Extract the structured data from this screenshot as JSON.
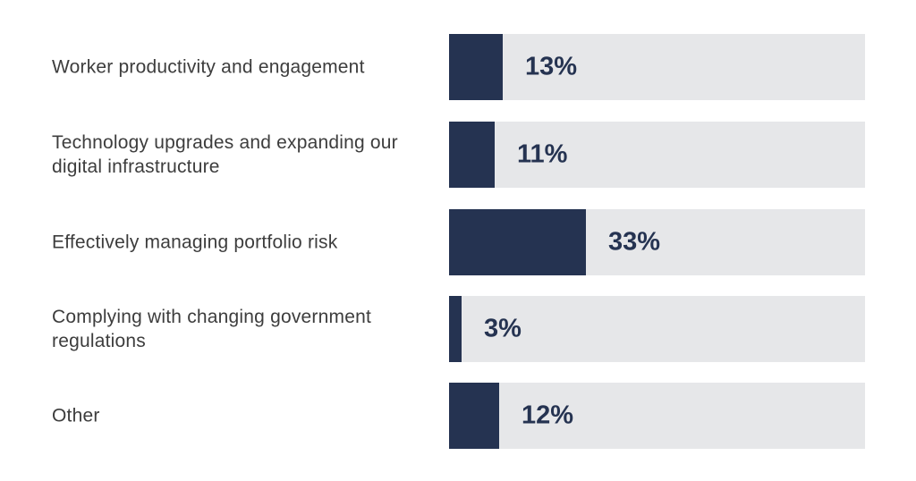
{
  "chart_data": {
    "type": "bar",
    "orientation": "horizontal",
    "categories": [
      "Worker productivity and engagement",
      "Technology upgrades and expanding our digital infrastructure",
      "Effectively managing portfolio risk",
      "Complying with changing government regulations",
      "Other"
    ],
    "values": [
      13,
      11,
      33,
      3,
      12
    ],
    "value_labels": [
      "13%",
      "11%",
      "33%",
      "3%",
      "12%"
    ],
    "xlim": [
      0,
      100
    ],
    "grid": false,
    "legend": "none",
    "colors": {
      "bar": "#253351",
      "track": "#e6e7e9",
      "label": "#3d3d3d",
      "value": "#253351"
    }
  }
}
